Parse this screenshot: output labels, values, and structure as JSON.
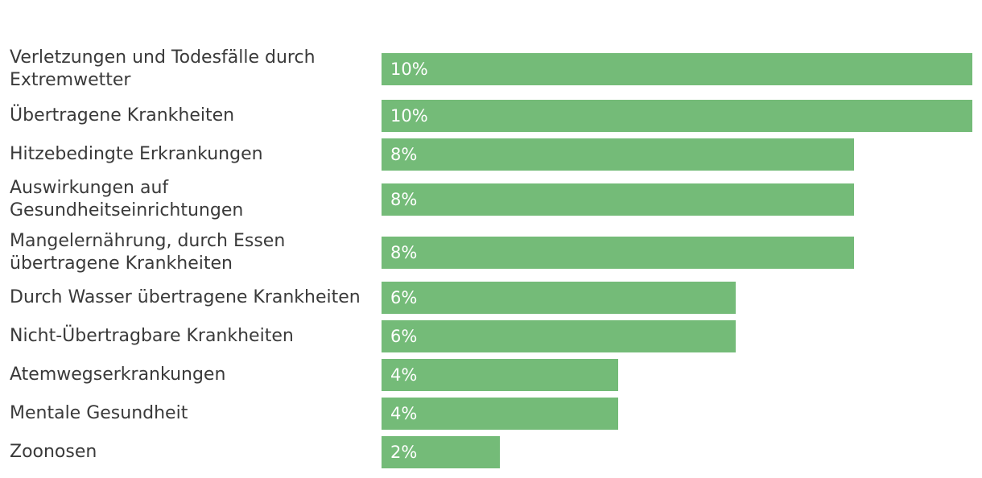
{
  "chart_data": {
    "type": "bar",
    "orientation": "horizontal",
    "title": "",
    "xlabel": "",
    "ylabel": "",
    "xlim": [
      0,
      10
    ],
    "grid": false,
    "color": "#74bb78",
    "categories": [
      "Verletzungen und Todesfälle durch Extremwetter",
      "Übertragene Krankheiten",
      "Hitzebedingte Erkrankungen",
      "Auswirkungen auf Gesundheitseinrichtungen",
      "Mangelernährung, durch Essen übertragene Krankheiten",
      "Durch Wasser übertragene Krankheiten",
      "Nicht-Übertragbare Krankheiten",
      "Atemwegserkrankungen",
      "Mentale Gesundheit",
      "Zoonosen"
    ],
    "values": [
      10,
      10,
      8,
      8,
      8,
      6,
      6,
      4,
      4,
      2
    ],
    "value_labels": [
      "10%",
      "10%",
      "8%",
      "8%",
      "8%",
      "6%",
      "6%",
      "4%",
      "4%",
      "2%"
    ]
  }
}
